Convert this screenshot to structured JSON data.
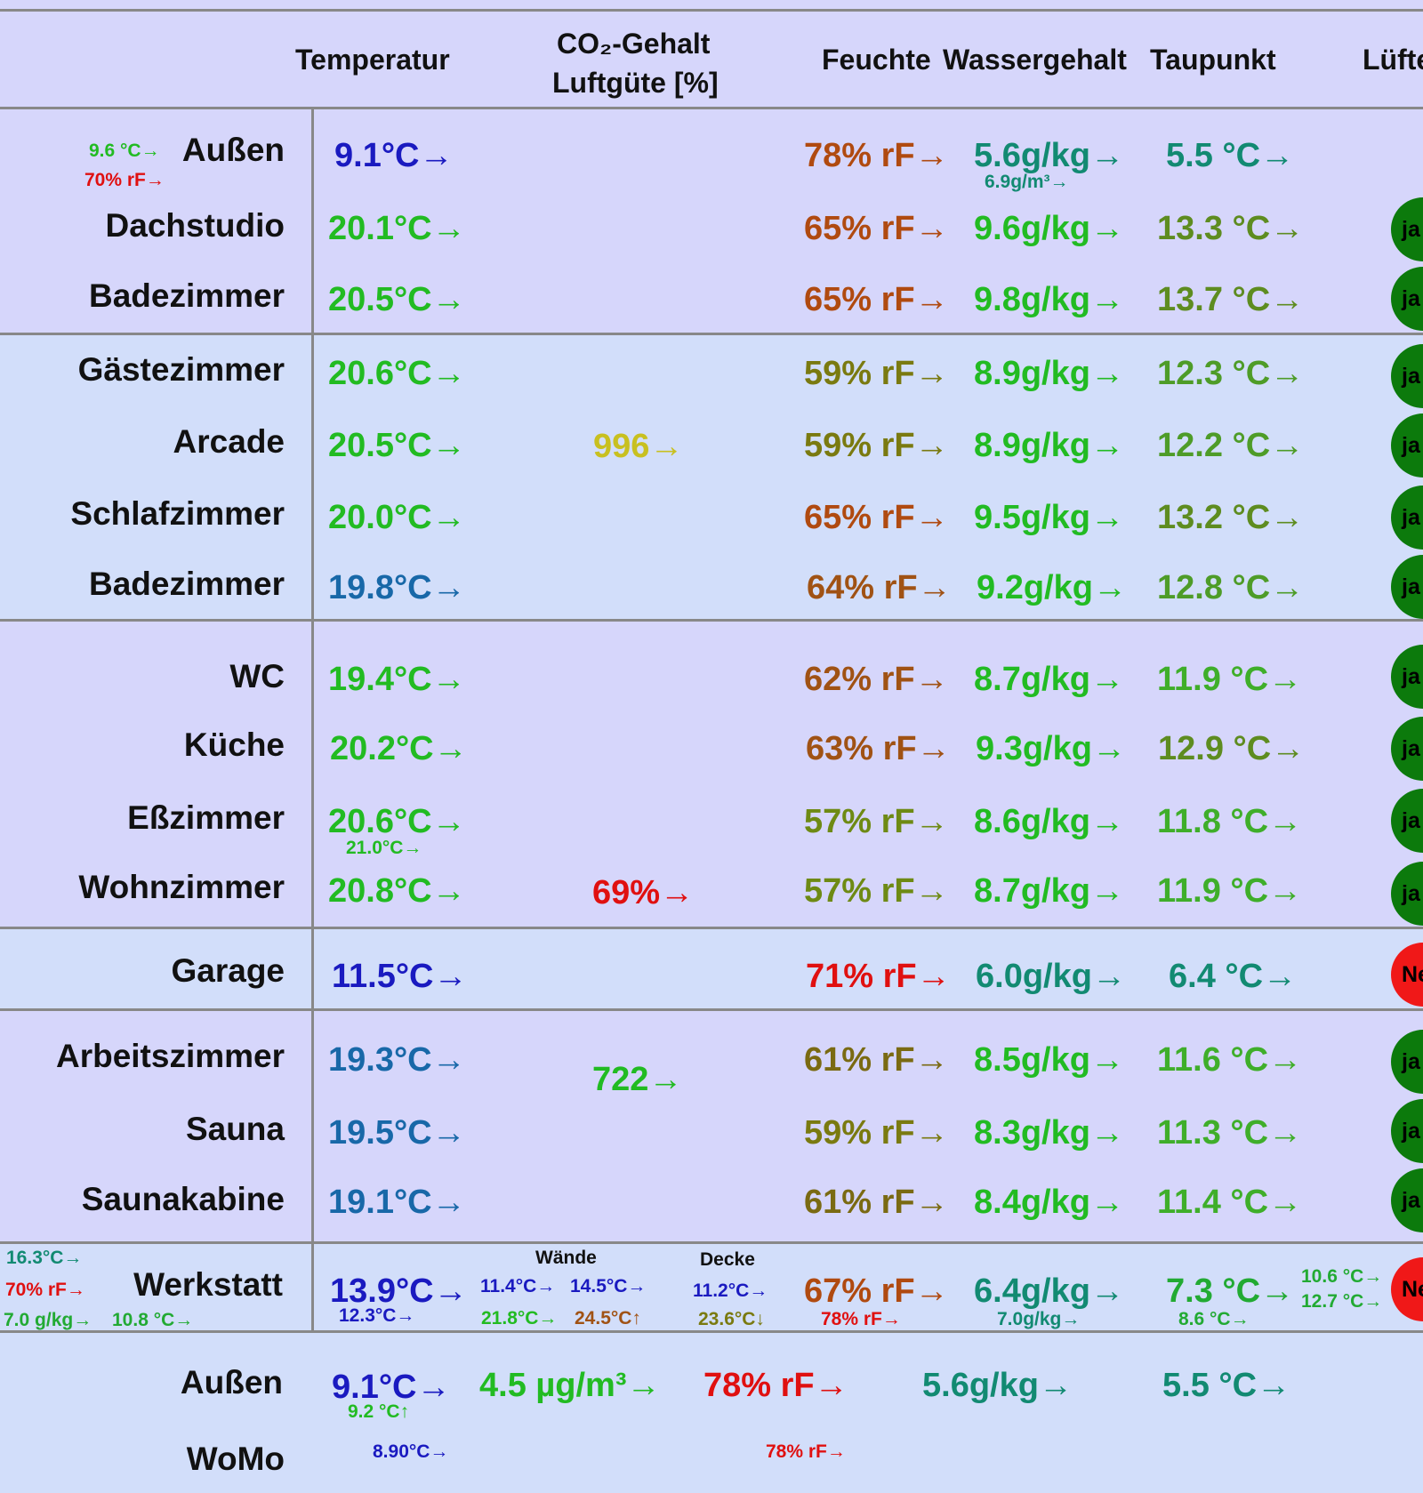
{
  "header": {
    "temperatur": "Temperatur",
    "co2_line1": "CO₂-Gehalt",
    "co2_line2": "Luftgüte [%]",
    "feuchte": "Feuchte",
    "wassergehalt": "Wassergehalt",
    "taupunkt": "Taupunkt",
    "lueften": "Lüfte"
  },
  "aussen": {
    "name": "Außen",
    "sub_temp": "9.6 °C→",
    "sub_rf": "70% rF→",
    "temp": "9.1°C→",
    "rf": "78% rF→",
    "wg": "5.6g/kg→",
    "wg_m3": "6.9g/m³→",
    "tp": "5.5 °C→"
  },
  "rows": [
    {
      "name": "Dachstudio",
      "temp": "20.1°C→",
      "rf": "65% rF→",
      "wg": "9.6g/kg→",
      "tp": "13.3 °C→",
      "vent": "ja"
    },
    {
      "name": "Badezimmer",
      "temp": "20.5°C→",
      "rf": "65% rF→",
      "wg": "9.8g/kg→",
      "tp": "13.7 °C→",
      "vent": "ja"
    },
    {
      "name": "Gästezimmer",
      "temp": "20.6°C→",
      "rf": "59% rF→",
      "wg": "8.9g/kg→",
      "tp": "12.3 °C→",
      "vent": "ja"
    },
    {
      "name": "Arcade",
      "temp": "20.5°C→",
      "rf": "59% rF→",
      "wg": "8.9g/kg→",
      "tp": "12.2 °C→",
      "vent": "ja"
    },
    {
      "name": "Schlafzimmer",
      "temp": "20.0°C→",
      "rf": "65% rF→",
      "wg": "9.5g/kg→",
      "tp": "13.2 °C→",
      "vent": "ja"
    },
    {
      "name": "Badezimmer",
      "temp": "19.8°C→",
      "rf": "64% rF→",
      "wg": "9.2g/kg→",
      "tp": "12.8 °C→",
      "vent": "ja"
    },
    {
      "name": "WC",
      "temp": "19.4°C→",
      "rf": "62% rF→",
      "wg": "8.7g/kg→",
      "tp": "11.9 °C→",
      "vent": "ja"
    },
    {
      "name": "Küche",
      "temp": "20.2°C→",
      "rf": "63% rF→",
      "wg": "9.3g/kg→",
      "tp": "12.9 °C→",
      "vent": "ja"
    },
    {
      "name": "Eßzimmer",
      "temp": "20.6°C→",
      "temp_sub": "21.0°C→",
      "rf": "57% rF→",
      "wg": "8.6g/kg→",
      "tp": "11.8 °C→",
      "vent": "ja"
    },
    {
      "name": "Wohnzimmer",
      "temp": "20.8°C→",
      "rf": "57% rF→",
      "wg": "8.7g/kg→",
      "tp": "11.9 °C→",
      "vent": "ja"
    },
    {
      "name": "Garage",
      "temp": "11.5°C→",
      "rf": "71% rF→",
      "wg": "6.0g/kg→",
      "tp": "6.4 °C→",
      "vent": "Nein"
    },
    {
      "name": "Arbeitszimmer",
      "temp": "19.3°C→",
      "rf": "61% rF→",
      "wg": "8.5g/kg→",
      "tp": "11.6 °C→",
      "vent": "ja"
    },
    {
      "name": "Sauna",
      "temp": "19.5°C→",
      "rf": "59% rF→",
      "wg": "8.3g/kg→",
      "tp": "11.3 °C→",
      "vent": "ja"
    },
    {
      "name": "Saunakabine",
      "temp": "19.1°C→",
      "rf": "61% rF→",
      "wg": "8.4g/kg→",
      "tp": "11.4 °C→",
      "vent": "ja"
    }
  ],
  "co2": {
    "og": "996→",
    "eg": "69%→",
    "keller": "722→"
  },
  "werkstatt": {
    "name": "Werkstatt",
    "side_temp": "16.3°C→",
    "side_rf": "70% rF→",
    "side_wg": "7.0 g/kg→",
    "side_tp": "10.8 °C→",
    "temp": "13.9°C→",
    "temp_sub": "12.3°C→",
    "waende_label": "Wände",
    "waende_1": "11.4°C→",
    "waende_2": "14.5°C→",
    "waende_3": "21.8°C→",
    "waende_4": "24.5°C↑",
    "decke_label": "Decke",
    "decke_1": "11.2°C→",
    "decke_2": "23.6°C↓",
    "rf": "67% rF→",
    "rf_sub": "78% rF→",
    "wg": "6.4g/kg→",
    "wg_sub": "7.0g/kg→",
    "tp": "7.3 °C→",
    "tp_sub": "8.6 °C→",
    "right_1": "10.6 °C→",
    "right_2": "12.7 °C→",
    "vent": "Nein"
  },
  "aussen2": {
    "name": "Außen",
    "temp": "9.1°C→",
    "temp_sub": "9.2 °C↑",
    "pm": "4.5 µg/m³→",
    "rf": "78% rF→",
    "wg": "5.6g/kg→",
    "tp": "5.5 °C→"
  },
  "womo": {
    "name": "WoMo",
    "temp": "8.90°C→",
    "rf": "78% rF→"
  }
}
